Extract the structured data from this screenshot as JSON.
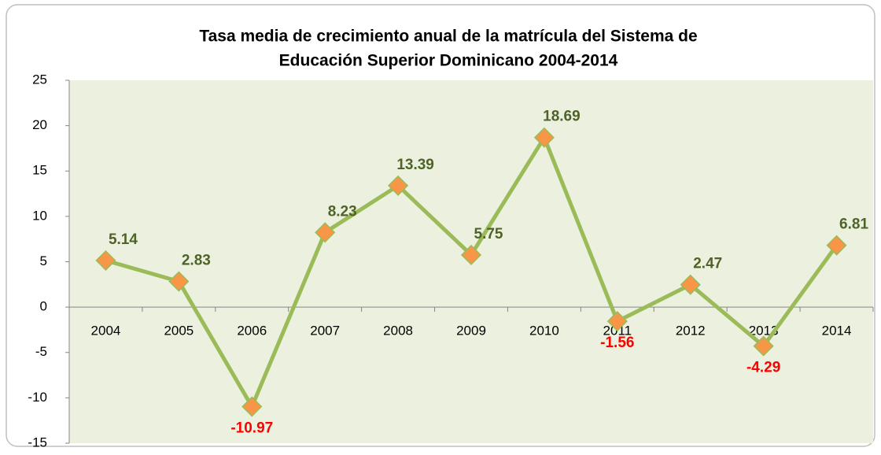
{
  "chart_data": {
    "type": "line",
    "title": [
      "Tasa media de crecimiento anual de la matrícula del Sistema de",
      "Educación Superior Dominicano 2004-2014"
    ],
    "categories": [
      "2004",
      "2005",
      "2006",
      "2007",
      "2008",
      "2009",
      "2010",
      "2011",
      "2012",
      "2013",
      "2014"
    ],
    "series": [
      {
        "name": "Tasa",
        "color": "#9bbb59",
        "marker_color": "#f79646",
        "values": [
          5.14,
          2.83,
          -10.97,
          8.23,
          13.39,
          5.75,
          18.69,
          -1.56,
          2.47,
          -4.29,
          6.81
        ]
      }
    ],
    "positive_label_color": "#4f6228",
    "negative_label_color": "#ff0000",
    "plot_background": "#ebf1de",
    "ylim": [
      -15,
      25
    ],
    "yticks": [
      -15,
      -10,
      -5,
      0,
      5,
      10,
      15,
      20,
      25
    ],
    "grid": false
  }
}
